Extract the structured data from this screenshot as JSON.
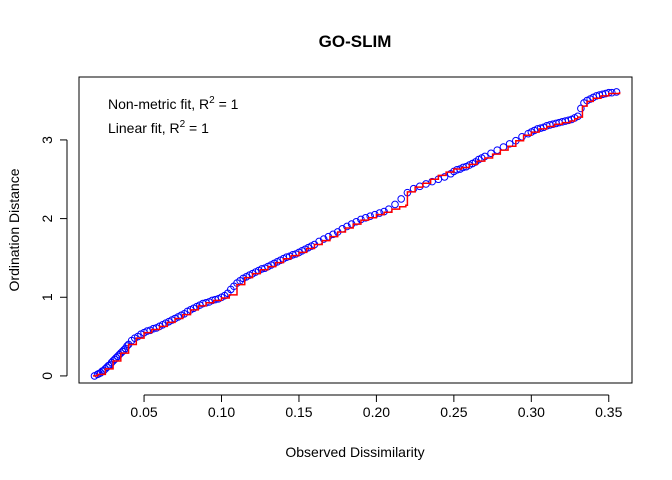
{
  "chart_data": {
    "type": "scatter",
    "title": "GO-SLIM",
    "xlabel": "Observed Dissimilarity",
    "ylabel": "Ordination Distance",
    "xlim": [
      0.008,
      0.365
    ],
    "ylim": [
      -0.09,
      3.8
    ],
    "x_ticks": [
      0.05,
      0.1,
      0.15,
      0.2,
      0.25,
      0.3,
      0.35
    ],
    "x_tick_labels": [
      "0.05",
      "0.10",
      "0.15",
      "0.20",
      "0.25",
      "0.30",
      "0.35"
    ],
    "y_ticks": [
      0,
      1,
      2,
      3
    ],
    "y_tick_labels": [
      "0",
      "1",
      "2",
      "3"
    ],
    "grid": false,
    "legend_position": "top-left",
    "annotations": [
      {
        "prefix": "Non-metric fit, R",
        "sup": "2",
        "suffix": " = 1"
      },
      {
        "prefix": "Linear fit, R",
        "sup": "2",
        "suffix": " = 1"
      }
    ],
    "colors": {
      "points": "#0000ff",
      "fit_line": "#ff0000",
      "axes": "#000000"
    },
    "series": [
      {
        "kind": "points",
        "x": [
          0.018,
          0.02,
          0.021,
          0.022,
          0.023,
          0.024,
          0.025,
          0.026,
          0.027,
          0.028,
          0.029,
          0.03,
          0.031,
          0.032,
          0.033,
          0.034,
          0.035,
          0.036,
          0.037,
          0.038,
          0.039,
          0.04,
          0.042,
          0.044,
          0.046,
          0.048,
          0.05,
          0.052,
          0.054,
          0.056,
          0.058,
          0.06,
          0.062,
          0.064,
          0.066,
          0.068,
          0.07,
          0.072,
          0.074,
          0.076,
          0.078,
          0.08,
          0.082,
          0.084,
          0.086,
          0.088,
          0.09,
          0.092,
          0.094,
          0.096,
          0.098,
          0.1,
          0.102,
          0.104,
          0.106,
          0.108,
          0.11,
          0.112,
          0.114,
          0.116,
          0.118,
          0.12,
          0.122,
          0.124,
          0.126,
          0.128,
          0.13,
          0.132,
          0.134,
          0.136,
          0.138,
          0.14,
          0.142,
          0.144,
          0.146,
          0.148,
          0.15,
          0.152,
          0.154,
          0.156,
          0.158,
          0.16,
          0.163,
          0.166,
          0.169,
          0.172,
          0.175,
          0.178,
          0.181,
          0.184,
          0.187,
          0.19,
          0.193,
          0.196,
          0.199,
          0.202,
          0.205,
          0.208,
          0.212,
          0.216,
          0.22,
          0.224,
          0.228,
          0.232,
          0.236,
          0.24,
          0.244,
          0.248,
          0.25,
          0.252,
          0.254,
          0.256,
          0.258,
          0.26,
          0.262,
          0.264,
          0.266,
          0.268,
          0.27,
          0.274,
          0.278,
          0.282,
          0.286,
          0.29,
          0.294,
          0.298,
          0.3,
          0.302,
          0.304,
          0.306,
          0.308,
          0.31,
          0.312,
          0.314,
          0.316,
          0.318,
          0.32,
          0.322,
          0.324,
          0.326,
          0.328,
          0.33,
          0.332,
          0.334,
          0.336,
          0.338,
          0.34,
          0.342,
          0.344,
          0.346,
          0.348,
          0.35,
          0.352,
          0.355
        ],
        "y": [
          0.0,
          0.02,
          0.03,
          0.04,
          0.06,
          0.07,
          0.09,
          0.11,
          0.13,
          0.14,
          0.17,
          0.19,
          0.21,
          0.23,
          0.25,
          0.27,
          0.29,
          0.31,
          0.33,
          0.35,
          0.38,
          0.4,
          0.45,
          0.48,
          0.5,
          0.53,
          0.55,
          0.57,
          0.58,
          0.6,
          0.61,
          0.63,
          0.65,
          0.67,
          0.69,
          0.71,
          0.73,
          0.75,
          0.77,
          0.79,
          0.82,
          0.84,
          0.86,
          0.88,
          0.9,
          0.92,
          0.93,
          0.94,
          0.96,
          0.97,
          0.98,
          1.0,
          1.02,
          1.05,
          1.1,
          1.14,
          1.18,
          1.21,
          1.24,
          1.26,
          1.28,
          1.3,
          1.32,
          1.34,
          1.36,
          1.37,
          1.39,
          1.41,
          1.43,
          1.45,
          1.47,
          1.49,
          1.51,
          1.52,
          1.54,
          1.55,
          1.57,
          1.59,
          1.61,
          1.63,
          1.65,
          1.67,
          1.71,
          1.74,
          1.77,
          1.8,
          1.83,
          1.87,
          1.9,
          1.93,
          1.96,
          1.99,
          2.01,
          2.03,
          2.05,
          2.07,
          2.09,
          2.12,
          2.18,
          2.25,
          2.33,
          2.38,
          2.41,
          2.44,
          2.47,
          2.5,
          2.53,
          2.57,
          2.6,
          2.62,
          2.63,
          2.65,
          2.66,
          2.68,
          2.7,
          2.72,
          2.75,
          2.77,
          2.79,
          2.83,
          2.87,
          2.91,
          2.95,
          2.99,
          3.04,
          3.08,
          3.1,
          3.12,
          3.14,
          3.15,
          3.16,
          3.18,
          3.19,
          3.2,
          3.21,
          3.22,
          3.23,
          3.24,
          3.25,
          3.26,
          3.28,
          3.3,
          3.4,
          3.47,
          3.5,
          3.52,
          3.54,
          3.56,
          3.57,
          3.58,
          3.59,
          3.6,
          3.6,
          3.61
        ]
      },
      {
        "kind": "step-line",
        "x": [
          0.017,
          0.02,
          0.025,
          0.03,
          0.035,
          0.04,
          0.045,
          0.05,
          0.055,
          0.06,
          0.065,
          0.07,
          0.075,
          0.08,
          0.085,
          0.09,
          0.095,
          0.1,
          0.105,
          0.11,
          0.115,
          0.12,
          0.125,
          0.13,
          0.135,
          0.14,
          0.145,
          0.15,
          0.155,
          0.16,
          0.165,
          0.17,
          0.175,
          0.18,
          0.185,
          0.19,
          0.195,
          0.2,
          0.205,
          0.21,
          0.215,
          0.219,
          0.22,
          0.225,
          0.23,
          0.235,
          0.24,
          0.245,
          0.25,
          0.255,
          0.26,
          0.265,
          0.27,
          0.275,
          0.28,
          0.285,
          0.29,
          0.295,
          0.3,
          0.305,
          0.31,
          0.315,
          0.32,
          0.325,
          0.328,
          0.33,
          0.333,
          0.336,
          0.34,
          0.345,
          0.35,
          0.357
        ],
        "y": [
          0.0,
          0.02,
          0.09,
          0.19,
          0.29,
          0.4,
          0.48,
          0.55,
          0.59,
          0.63,
          0.68,
          0.73,
          0.78,
          0.84,
          0.89,
          0.93,
          0.96,
          0.99,
          1.03,
          1.16,
          1.25,
          1.3,
          1.35,
          1.39,
          1.44,
          1.49,
          1.53,
          1.57,
          1.62,
          1.67,
          1.72,
          1.77,
          1.83,
          1.88,
          1.93,
          1.98,
          2.01,
          2.05,
          2.08,
          2.12,
          2.15,
          2.17,
          2.34,
          2.4,
          2.45,
          2.5,
          2.55,
          2.59,
          2.63,
          2.65,
          2.69,
          2.73,
          2.77,
          2.82,
          2.87,
          2.92,
          2.99,
          3.06,
          3.1,
          3.14,
          3.17,
          3.2,
          3.22,
          3.24,
          3.27,
          3.29,
          3.43,
          3.49,
          3.53,
          3.56,
          3.59,
          3.61
        ]
      }
    ]
  }
}
